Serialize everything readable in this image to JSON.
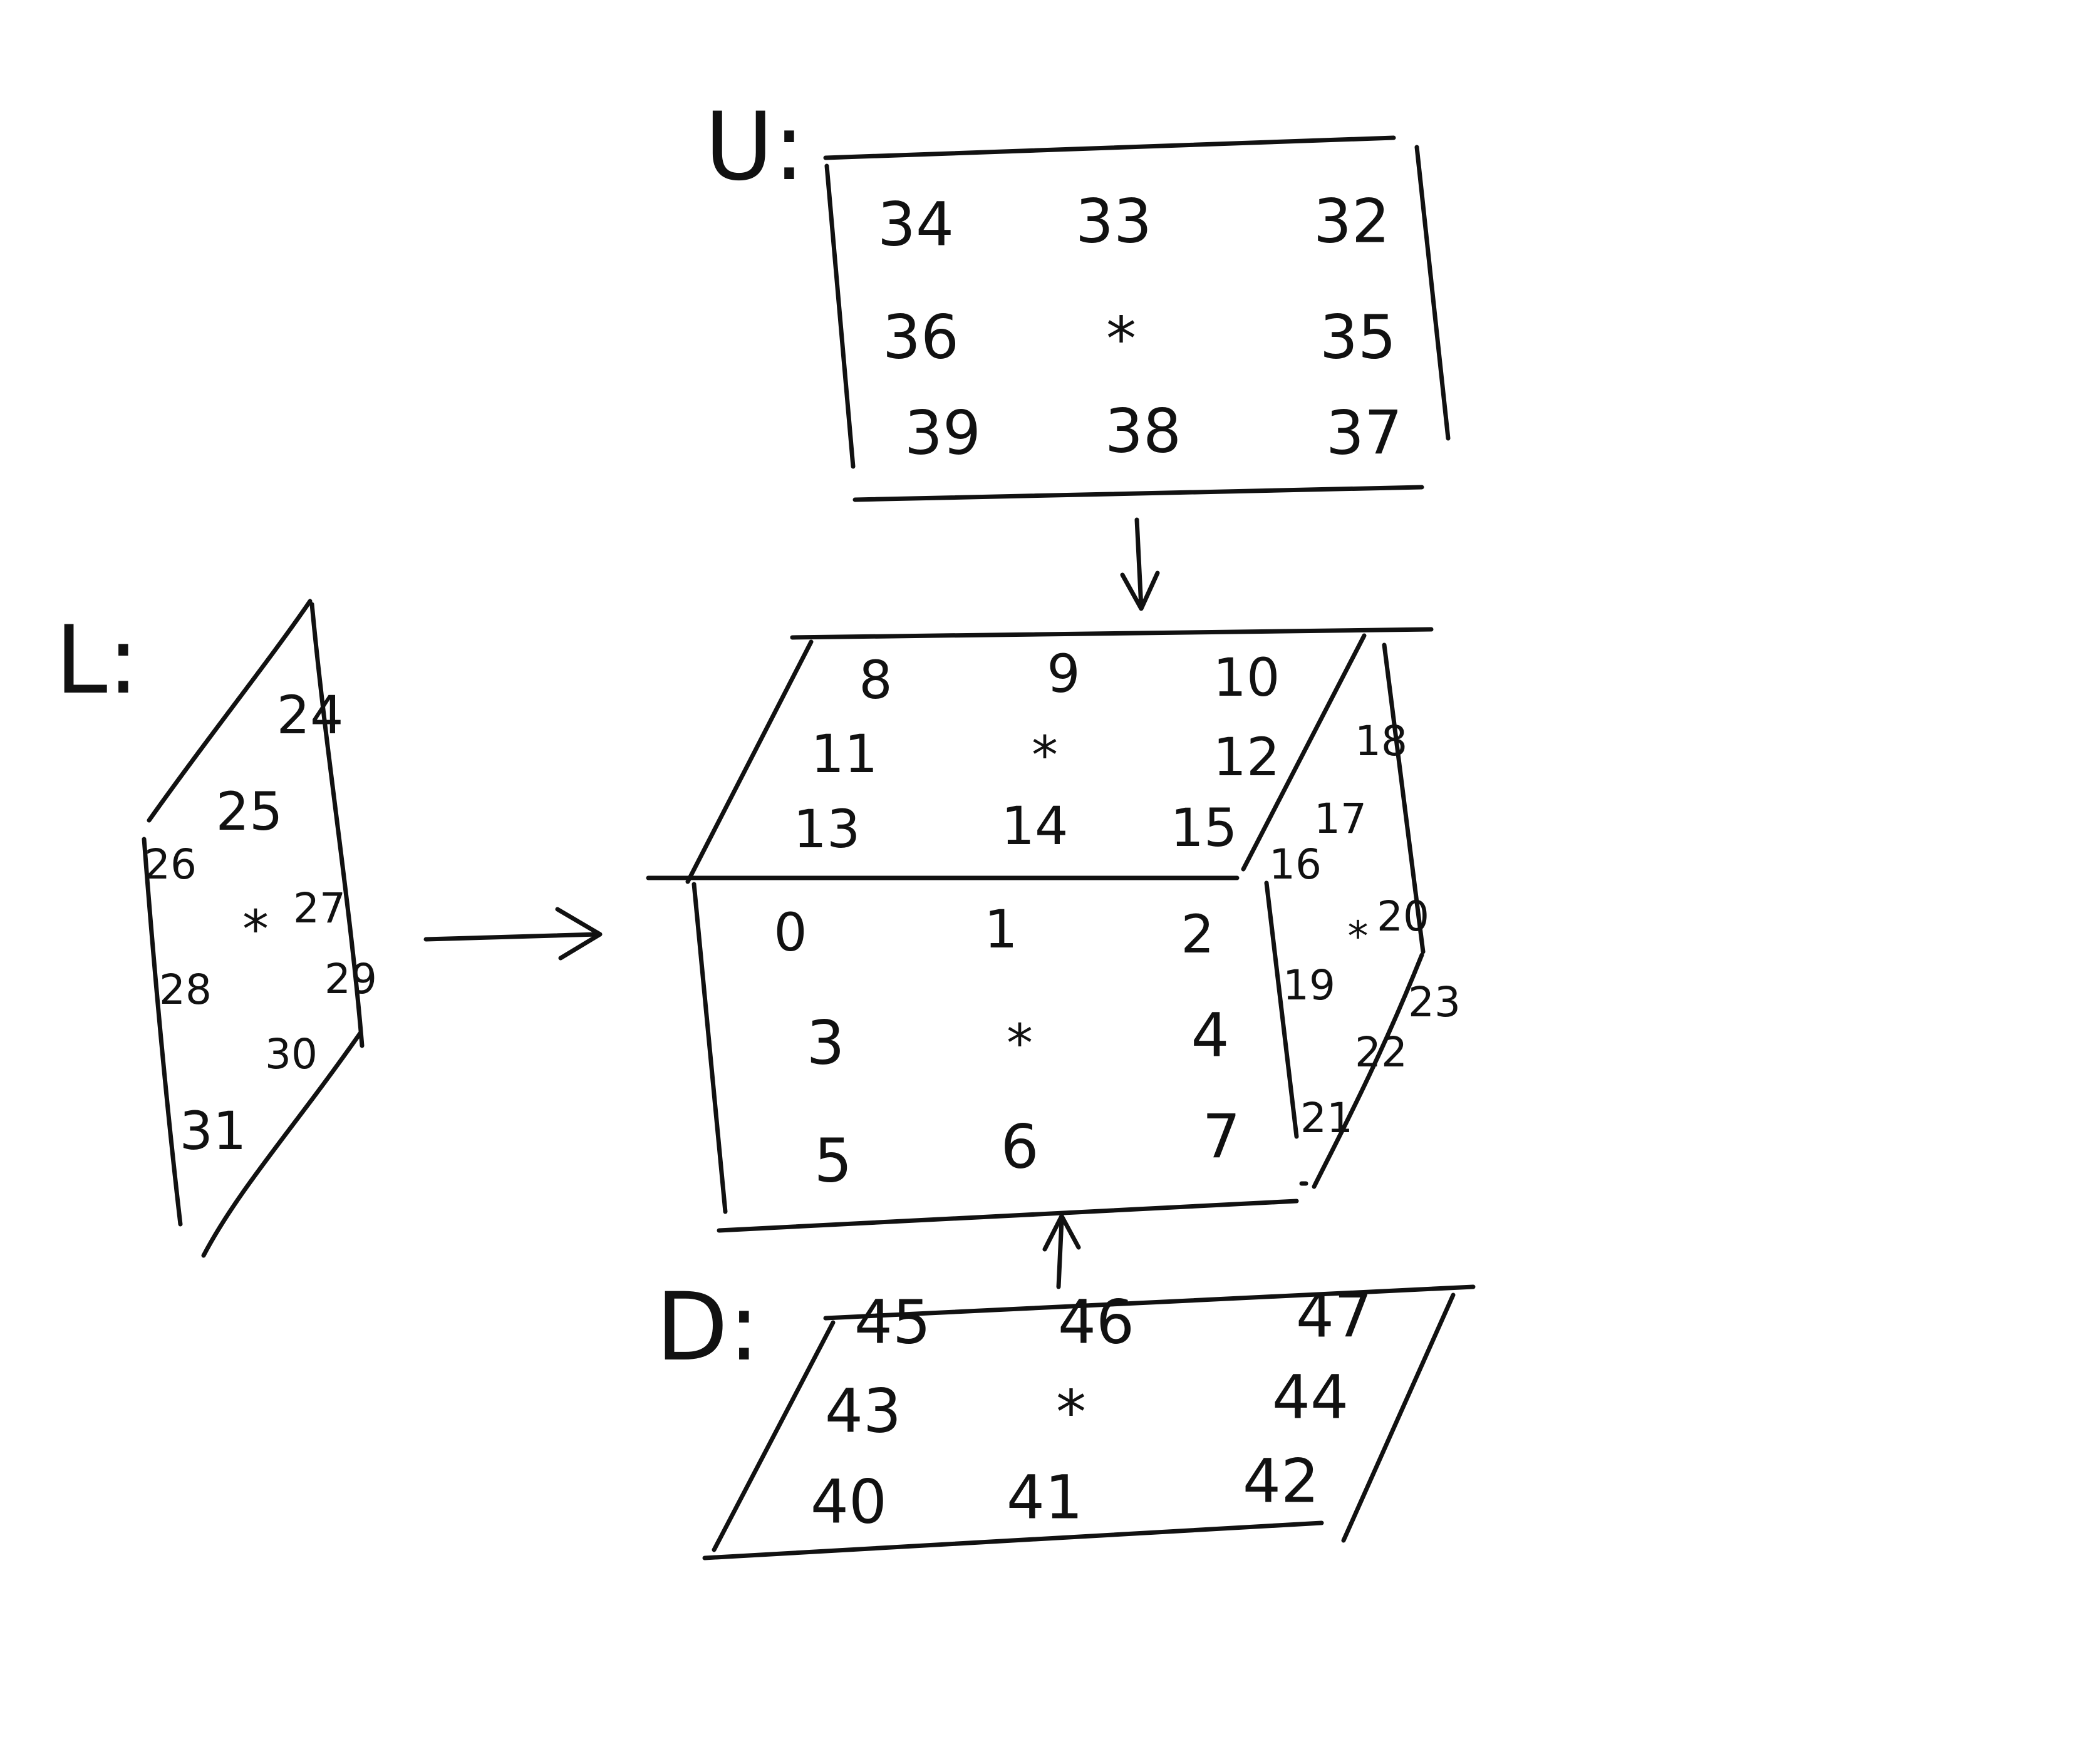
{
  "faces": {
    "up": {
      "label": "U:",
      "cells": [
        "34",
        "33",
        "32",
        "36",
        "*",
        "35",
        "39",
        "38",
        "37"
      ]
    },
    "left": {
      "label": "L:",
      "cells": [
        "24",
        "25",
        "26",
        "27",
        "*",
        "28",
        "29",
        "30",
        "31"
      ]
    },
    "down": {
      "label": "D:",
      "cells": [
        "45",
        "46",
        "47",
        "43",
        "*",
        "44",
        "40",
        "41",
        "42"
      ]
    },
    "front": {
      "cells": [
        "0",
        "1",
        "2",
        "3",
        "*",
        "4",
        "5",
        "6",
        "7"
      ]
    },
    "top": {
      "cells": [
        "8",
        "9",
        "10",
        "11",
        "*",
        "12",
        "13",
        "14",
        "15"
      ]
    },
    "right": {
      "cells": [
        "16",
        "17",
        "18",
        "19",
        "*",
        "20",
        "21",
        "22",
        "23"
      ]
    }
  }
}
